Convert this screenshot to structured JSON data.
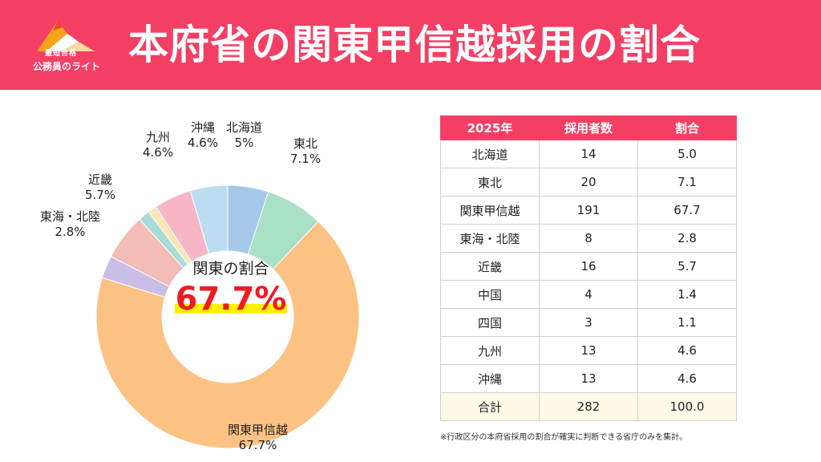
{
  "header": {
    "title": "本府省の関東甲信越採用の割合",
    "logo_text": "公務員のライト",
    "logo_badge": "最短合格"
  },
  "colors": {
    "header_bg": "#f43f65",
    "highlight": "#fff200",
    "value_red": "#ee1b24"
  },
  "chart_data": {
    "type": "pie",
    "title": "本府省の関東甲信越採用の割合",
    "center_label": "関東の割合",
    "center_value": "67.7%",
    "categories": [
      "北海道",
      "東北",
      "関東甲信越",
      "東海・北陸",
      "近畿",
      "中国",
      "四国",
      "九州",
      "沖縄"
    ],
    "values": [
      5.0,
      7.1,
      67.7,
      2.8,
      5.7,
      1.4,
      1.1,
      4.6,
      4.6
    ],
    "colors": [
      "#a6c8e8",
      "#a9e1c4",
      "#fcc283",
      "#c9bfe6",
      "#f2bcb7",
      "#a9dcd8",
      "#f8e6b3",
      "#f6b6c6",
      "#bcdcf1"
    ],
    "labels": [
      {
        "name": "北海道",
        "value": "5%"
      },
      {
        "name": "東北",
        "value": "7.1%"
      },
      {
        "name": "関東甲信越",
        "value": "67.7%"
      },
      {
        "name": "東海・北陸",
        "value": "2.8%"
      },
      {
        "name": "近畿",
        "value": "5.7%"
      },
      {
        "name": "九州",
        "value": "4.6%"
      },
      {
        "name": "沖縄",
        "value": "4.6%"
      }
    ]
  },
  "table": {
    "headers": [
      "2025年",
      "採用者数",
      "割合"
    ],
    "rows": [
      [
        "北海道",
        "14",
        "5.0"
      ],
      [
        "東北",
        "20",
        "7.1"
      ],
      [
        "関東甲信越",
        "191",
        "67.7"
      ],
      [
        "東海・北陸",
        "8",
        "2.8"
      ],
      [
        "近畿",
        "16",
        "5.7"
      ],
      [
        "中国",
        "4",
        "1.4"
      ],
      [
        "四国",
        "3",
        "1.1"
      ],
      [
        "九州",
        "13",
        "4.6"
      ],
      [
        "沖縄",
        "13",
        "4.6"
      ],
      [
        "合計",
        "282",
        "100.0"
      ]
    ]
  },
  "note": "※行政区分の本府省採用の割合が確実に判断できる省庁のみを集計。"
}
